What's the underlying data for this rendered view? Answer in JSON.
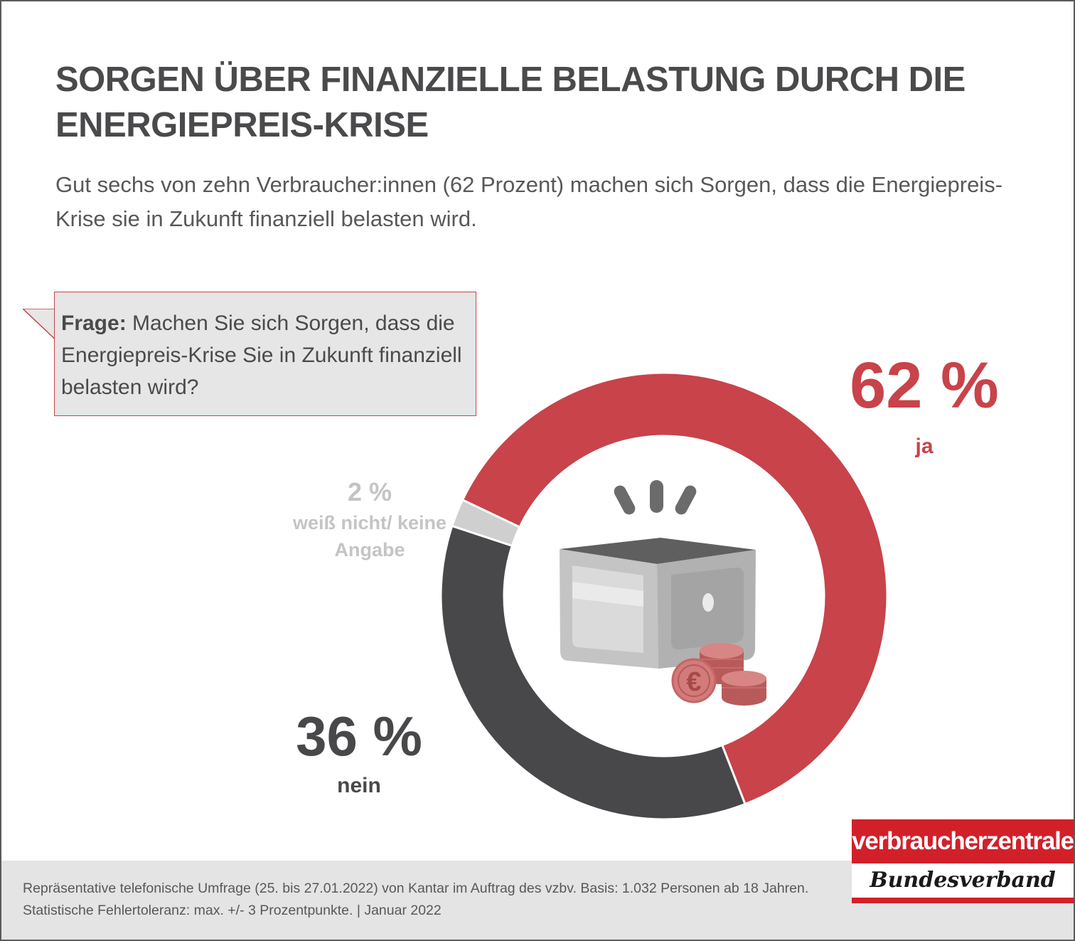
{
  "title": "SORGEN ÜBER FINANZIELLE BELASTUNG DURCH DIE ENERGIEPREIS-KRISE",
  "subtitle": "Gut sechs von zehn Verbraucher:innen (62 Prozent) machen sich Sorgen, dass die Energiepreis-Krise sie in Zukunft finanziell belasten wird.",
  "question": {
    "label": "Frage:",
    "text": "Machen Sie sich Sorgen, dass die Energiepreis-Krise Sie in Zukunft finanziell belasten wird?"
  },
  "chart_data": {
    "type": "pie",
    "variant": "donut",
    "segments": [
      {
        "label": "ja",
        "value": 62,
        "display": "62 %",
        "color": "#c8434a"
      },
      {
        "label": "nein",
        "value": 36,
        "display": "36 %",
        "color": "#48484a"
      },
      {
        "label": "weiß nicht/ keine Angabe",
        "value": 2,
        "display": "2 %",
        "color": "#cfcfcf"
      }
    ],
    "center_icon": "wallet-with-euro-coins-icon"
  },
  "footer": {
    "note": "Repräsentative telefonische Umfrage (25. bis 27.01.2022) von Kantar im Auftrag des vzbv. Basis: 1.032 Personen ab 18 Jahren. Statistische Fehlertoleranz: max. +/- 3 Prozentpunkte. | Januar 2022"
  },
  "logo": {
    "top": "verbraucherzentrale",
    "bottom": "Bundesverband"
  },
  "colors": {
    "accent": "#c8434a",
    "dark": "#48484a",
    "light": "#cfcfcf",
    "brand_red": "#d2202a"
  }
}
